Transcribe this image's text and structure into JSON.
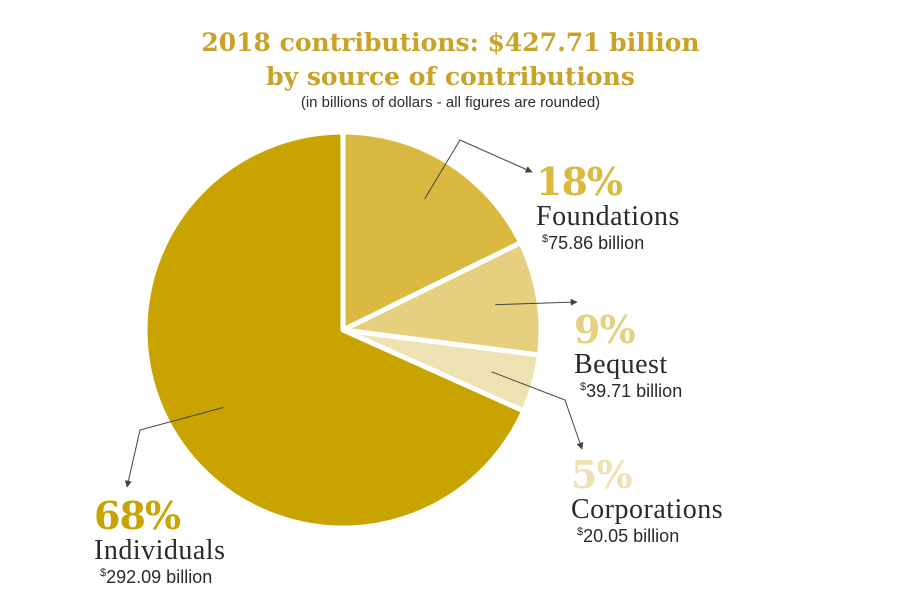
{
  "chart_data": {
    "type": "pie",
    "title": "2018 contributions: $427.71 billion",
    "subtitle_line": "by source of contributions",
    "note": "(in billions of dollars - all figures are rounded)",
    "slices": [
      {
        "key": "foundations",
        "name": "Foundations",
        "percent": "18%",
        "value": 75.86,
        "currency": "$",
        "amount": "75.86 billion",
        "color": "#d9b940"
      },
      {
        "key": "bequest",
        "name": "Bequest",
        "percent": "9%",
        "value": 39.71,
        "currency": "$",
        "amount": "39.71 billion",
        "color": "#e6cf7e"
      },
      {
        "key": "corporations",
        "name": "Corporations",
        "percent": "5%",
        "value": 20.05,
        "currency": "$",
        "amount": "20.05 billion",
        "color": "#efe2b2"
      },
      {
        "key": "individuals",
        "name": "Individuals",
        "percent": "68%",
        "value": 292.09,
        "currency": "$",
        "amount": "292.09 billion",
        "color": "#c9a400"
      }
    ],
    "start_angle_deg": 0,
    "direction": "clockwise",
    "legend": "none"
  }
}
